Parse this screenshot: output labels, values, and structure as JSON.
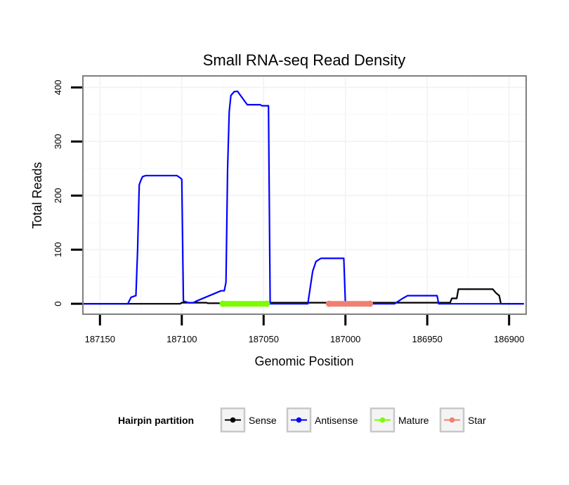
{
  "chart_data": {
    "type": "line",
    "title": "Small RNA-seq Read Density",
    "xlabel": "Genomic Position",
    "ylabel": "Total Reads",
    "xlim": [
      187160,
      186890
    ],
    "ylim": [
      -18,
      420
    ],
    "x_reversed": true,
    "grid": true,
    "x_ticks": [
      {
        "value": 187150,
        "label": "187150"
      },
      {
        "value": 187100,
        "label": "187100"
      },
      {
        "value": 187050,
        "label": "187050"
      },
      {
        "value": 187000,
        "label": "187000"
      },
      {
        "value": 186950,
        "label": "186950"
      },
      {
        "value": 186900,
        "label": "186900"
      }
    ],
    "y_ticks": [
      {
        "value": 0,
        "label": "0"
      },
      {
        "value": 100,
        "label": "100"
      },
      {
        "value": 200,
        "label": "200"
      },
      {
        "value": 300,
        "label": "300"
      },
      {
        "value": 400,
        "label": "400"
      }
    ],
    "series": [
      {
        "name": "Sense",
        "color": "#000000",
        "x": [
          187161,
          187101,
          187100,
          187085,
          187084,
          187077,
          187076,
          187050,
          187049,
          186936,
          186935,
          186932,
          186931,
          186925,
          186924,
          186910,
          186908,
          186906,
          186905,
          186891
        ],
        "y": [
          0,
          0,
          2,
          2,
          1,
          1,
          0,
          0,
          2,
          2,
          10,
          10,
          27,
          27,
          27,
          27,
          20,
          15,
          0,
          0
        ]
      },
      {
        "name": "Antisense",
        "color": "#0000ff",
        "x": [
          187161,
          187133,
          187131,
          187128,
          187127,
          187126,
          187125,
          187124,
          187122,
          187117,
          187103,
          187101,
          187100,
          187099,
          187096,
          187093,
          187091,
          187076,
          187074,
          187073,
          187072,
          187071,
          187070,
          187068,
          187066,
          187060,
          187052,
          187051,
          187047,
          187046,
          187045,
          187030,
          187023,
          187020,
          187018,
          187015,
          187001,
          187000,
          186970,
          186965,
          186962,
          186960,
          186945,
          186944,
          186943,
          186891
        ],
        "y": [
          0,
          0,
          12,
          15,
          100,
          220,
          228,
          235,
          237,
          237,
          237,
          233,
          230,
          5,
          2,
          2,
          5,
          24,
          24,
          40,
          250,
          355,
          385,
          392,
          393,
          368,
          368,
          366,
          366,
          0,
          0,
          0,
          0,
          60,
          78,
          84,
          84,
          0,
          0,
          10,
          15,
          15,
          15,
          15,
          0,
          0
        ]
      },
      {
        "name": "Mature",
        "color": "#7cfc00",
        "x": [
          187075,
          187048
        ],
        "y": [
          0,
          0
        ]
      },
      {
        "name": "Star",
        "color": "#f08070",
        "x": [
          187010,
          186985
        ],
        "y": [
          0,
          0
        ]
      }
    ],
    "legend": {
      "title": "Hairpin partition",
      "placement": "bottom",
      "entries": [
        {
          "label": "Sense",
          "color": "#000000"
        },
        {
          "label": "Antisense",
          "color": "#0000ff"
        },
        {
          "label": "Mature",
          "color": "#7cfc00"
        },
        {
          "label": "Star",
          "color": "#f08070"
        }
      ]
    }
  }
}
